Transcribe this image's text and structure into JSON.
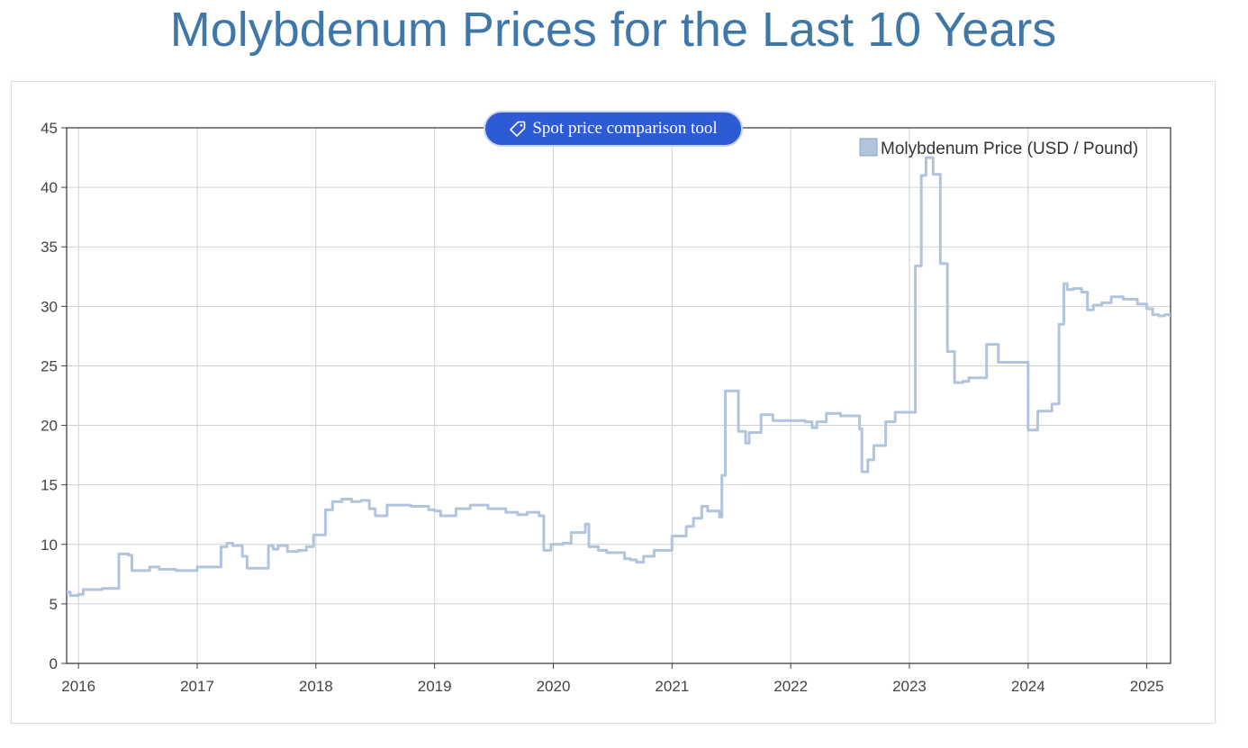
{
  "page": {
    "title": "Molybdenum Prices for the Last 10 Years"
  },
  "tool_button": {
    "label": "Spot price comparison tool",
    "icon": "tag-icon"
  },
  "colors": {
    "title": "#3f77a8",
    "series": "#b0c4de",
    "button": "#2d5bd6"
  },
  "chart_data": {
    "type": "line",
    "title": "",
    "xlabel": "",
    "ylabel": "",
    "ylim": [
      0,
      45
    ],
    "xlim": [
      2015.9,
      2025.2
    ],
    "y_ticks": [
      0,
      5,
      10,
      15,
      20,
      25,
      30,
      35,
      40,
      45
    ],
    "x_ticks": [
      {
        "value": 2016,
        "label": "2016"
      },
      {
        "value": 2017,
        "label": "2017"
      },
      {
        "value": 2018,
        "label": "2018"
      },
      {
        "value": 2019,
        "label": "2019"
      },
      {
        "value": 2020,
        "label": "2020"
      },
      {
        "value": 2021,
        "label": "2021"
      },
      {
        "value": 2022,
        "label": "2022"
      },
      {
        "value": 2023,
        "label": "2023"
      },
      {
        "value": 2024,
        "label": "2024"
      },
      {
        "value": 2025,
        "label": "2025"
      }
    ],
    "grid": true,
    "legend_position": "top-right",
    "series": [
      {
        "name": "Molybdenum Price (USD / Pound)",
        "x": [
          2015.9,
          2015.93,
          2016.0,
          2016.04,
          2016.12,
          2016.2,
          2016.28,
          2016.3,
          2016.34,
          2016.42,
          2016.45,
          2016.53,
          2016.6,
          2016.68,
          2016.75,
          2016.82,
          2016.9,
          2017.0,
          2017.1,
          2017.2,
          2017.25,
          2017.3,
          2017.38,
          2017.42,
          2017.48,
          2017.6,
          2017.64,
          2017.68,
          2017.76,
          2017.85,
          2017.92,
          2017.98,
          2018.02,
          2018.08,
          2018.14,
          2018.22,
          2018.3,
          2018.38,
          2018.45,
          2018.5,
          2018.6,
          2018.7,
          2018.8,
          2018.95,
          2019.0,
          2019.05,
          2019.18,
          2019.3,
          2019.45,
          2019.6,
          2019.7,
          2019.78,
          2019.88,
          2019.92,
          2019.98,
          2020.08,
          2020.15,
          2020.27,
          2020.3,
          2020.38,
          2020.45,
          2020.6,
          2020.65,
          2020.7,
          2020.76,
          2020.85,
          2021.0,
          2021.05,
          2021.12,
          2021.18,
          2021.25,
          2021.3,
          2021.4,
          2021.42,
          2021.45,
          2021.52,
          2021.56,
          2021.62,
          2021.65,
          2021.75,
          2021.85,
          2022.0,
          2022.12,
          2022.18,
          2022.22,
          2022.3,
          2022.42,
          2022.58,
          2022.6,
          2022.65,
          2022.7,
          2022.8,
          2022.88,
          2023.0,
          2023.05,
          2023.1,
          2023.14,
          2023.2,
          2023.26,
          2023.32,
          2023.38,
          2023.45,
          2023.5,
          2023.65,
          2023.75,
          2023.95,
          2024.0,
          2024.08,
          2024.2,
          2024.26,
          2024.3,
          2024.33,
          2024.38,
          2024.45,
          2024.5,
          2024.55,
          2024.62,
          2024.7,
          2024.8,
          2024.92,
          2025.0,
          2025.05,
          2025.1,
          2025.15,
          2025.2
        ],
        "values": [
          6.0,
          5.7,
          5.8,
          6.2,
          6.2,
          6.3,
          6.3,
          6.3,
          9.2,
          9.1,
          7.8,
          7.8,
          8.1,
          7.9,
          7.9,
          7.8,
          7.8,
          8.1,
          8.1,
          9.8,
          10.1,
          9.9,
          9.0,
          8.0,
          8.0,
          9.9,
          9.6,
          9.9,
          9.4,
          9.5,
          9.8,
          10.8,
          10.8,
          12.9,
          13.6,
          13.8,
          13.6,
          13.7,
          13.0,
          12.4,
          13.3,
          13.3,
          13.2,
          12.9,
          12.8,
          12.4,
          13.0,
          13.3,
          13.0,
          12.7,
          12.5,
          12.7,
          12.4,
          9.5,
          10.0,
          10.1,
          11.0,
          11.7,
          9.8,
          9.5,
          9.3,
          8.8,
          8.7,
          8.5,
          9.0,
          9.5,
          10.7,
          10.7,
          11.5,
          12.2,
          13.2,
          12.8,
          12.3,
          15.8,
          22.9,
          22.9,
          19.5,
          18.5,
          19.4,
          20.9,
          20.4,
          20.4,
          20.3,
          19.8,
          20.3,
          21.0,
          20.8,
          19.7,
          16.1,
          17.1,
          18.3,
          20.3,
          21.1,
          21.1,
          33.4,
          41.0,
          42.5,
          41.1,
          33.6,
          26.2,
          23.6,
          23.7,
          24.0,
          26.8,
          25.3,
          25.3,
          19.6,
          21.2,
          21.8,
          28.5,
          31.9,
          31.4,
          31.5,
          31.2,
          29.7,
          30.1,
          30.3,
          30.8,
          30.6,
          30.2,
          29.8,
          29.3,
          29.2,
          29.3,
          29.1
        ]
      }
    ]
  }
}
